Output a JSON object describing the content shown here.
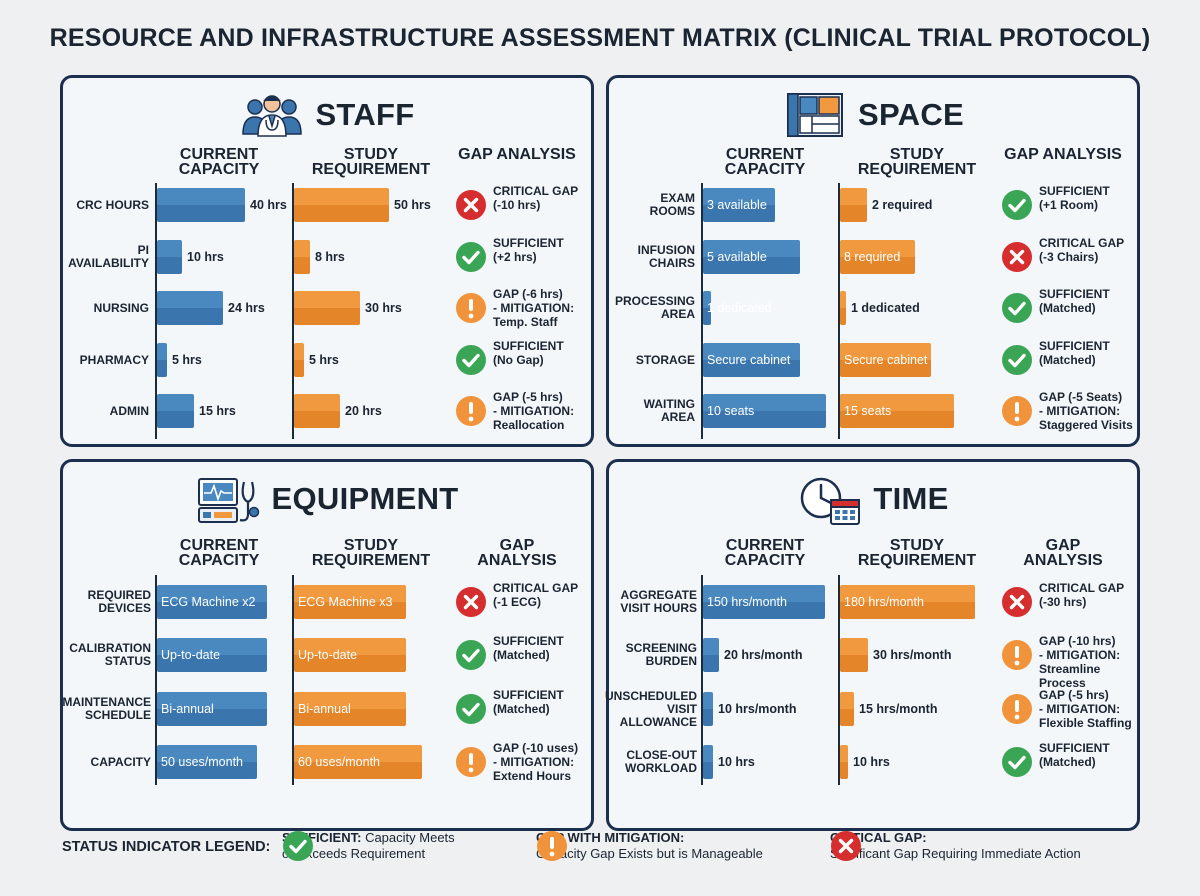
{
  "title": "RESOURCE AND INFRASTRUCTURE ASSESSMENT MATRIX (CLINICAL TRIAL PROTOCOL)",
  "colors": {
    "blue": "#3a76ad",
    "orange": "#e38528",
    "green": "#3aa655",
    "red": "#d62e2e",
    "amber": "#f0933a",
    "border": "#1c2f4f"
  },
  "panels": [
    {
      "title": "STAFF",
      "icon": "staff-icon",
      "headers": [
        "CURRENT\nCAPACITY",
        "STUDY\nREQUIREMENT",
        "GAP ANALYSIS"
      ],
      "rows": [
        {
          "label": "CRC HOURS",
          "current": "40 hrs",
          "cur_val": 40,
          "required": "50 hrs",
          "req_val": 50,
          "status": "critical",
          "gap": "CRITICAL GAP\n(-10 hrs)"
        },
        {
          "label": "PI\nAVAILABILITY",
          "current": "10 hrs",
          "cur_val": 10,
          "required": "8 hrs",
          "req_val": 8,
          "status": "sufficient",
          "gap": "SUFFICIENT\n(+2 hrs)"
        },
        {
          "label": "NURSING",
          "current": "24 hrs",
          "cur_val": 24,
          "required": "30 hrs",
          "req_val": 30,
          "status": "mitigation",
          "gap": "GAP (-6 hrs)\n- MITIGATION:\nTemp. Staff"
        },
        {
          "label": "PHARMACY",
          "current": "5 hrs",
          "cur_val": 5,
          "required": "5 hrs",
          "req_val": 5,
          "status": "sufficient",
          "gap": "SUFFICIENT\n(No Gap)"
        },
        {
          "label": "ADMIN",
          "current": "15 hrs",
          "cur_val": 15,
          "required": "20 hrs",
          "req_val": 20,
          "status": "mitigation",
          "gap": "GAP (-5 hrs)\n- MITIGATION:\nReallocation"
        }
      ]
    },
    {
      "title": "SPACE",
      "icon": "floorplan-icon",
      "headers": [
        "CURRENT\nCAPACITY",
        "STUDY\nREQUIREMENT",
        "GAP ANALYSIS"
      ],
      "rows": [
        {
          "label": "EXAM\nROOMS",
          "current": "3 available",
          "cur_val": 3,
          "required": "2 required",
          "req_val": 2,
          "status": "sufficient",
          "gap": "SUFFICIENT\n(+1 Room)"
        },
        {
          "label": "INFUSION\nCHAIRS",
          "current": "5 available",
          "cur_val": 5,
          "required": "8 required",
          "req_val": 8,
          "status": "critical",
          "gap": "CRITICAL GAP\n(-3 Chairs)"
        },
        {
          "label": "PROCESSING\nAREA",
          "current": "1 dedicated",
          "cur_val": 1,
          "required": "1 dedicated",
          "req_val": 1,
          "status": "sufficient",
          "gap": "SUFFICIENT\n(Matched)"
        },
        {
          "label": "STORAGE",
          "current": "Secure cabinet",
          "cur_val": 1,
          "required": "Secure cabinet",
          "req_val": 1,
          "status": "sufficient",
          "gap": "SUFFICIENT\n(Matched)"
        },
        {
          "label": "WAITING\nAREA",
          "current": "10 seats",
          "cur_val": 10,
          "required": "15 seats",
          "req_val": 15,
          "status": "mitigation",
          "gap": "GAP (-5 Seats)\n- MITIGATION:\nStaggered Visits"
        }
      ]
    },
    {
      "title": "EQUIPMENT",
      "icon": "monitor-stethoscope-icon",
      "headers": [
        "CURRENT\nCAPACITY",
        "STUDY\nREQUIREMENT",
        "GAP\nANALYSIS"
      ],
      "rows": [
        {
          "label": "REQUIRED\nDEVICES",
          "current": "ECG Machine x2",
          "cur_val": 2,
          "required": "ECG Machine x3",
          "req_val": 3,
          "status": "critical",
          "gap": "CRITICAL GAP\n(-1 ECG)"
        },
        {
          "label": "CALIBRATION\nSTATUS",
          "current": "Up-to-date",
          "cur_val": 1,
          "required": "Up-to-date",
          "req_val": 1,
          "status": "sufficient",
          "gap": "SUFFICIENT\n(Matched)"
        },
        {
          "label": "MAINTENANCE\nSCHEDULE",
          "current": "Bi-annual",
          "cur_val": 1,
          "required": "Bi-annual",
          "req_val": 1,
          "status": "sufficient",
          "gap": "SUFFICIENT\n(Matched)"
        },
        {
          "label": "CAPACITY",
          "current": "50 uses/month",
          "cur_val": 50,
          "required": "60 uses/month",
          "req_val": 60,
          "status": "mitigation",
          "gap": "GAP (-10 uses)\n- MITIGATION:\nExtend Hours"
        }
      ]
    },
    {
      "title": "TIME",
      "icon": "clock-calendar-icon",
      "headers": [
        "CURRENT\nCAPACITY",
        "STUDY\nREQUIREMENT",
        "GAP\nANALYSIS"
      ],
      "rows": [
        {
          "label": "AGGREGATE\nVISIT HOURS",
          "current": "150 hrs/month",
          "cur_val": 150,
          "required": "180 hrs/month",
          "req_val": 180,
          "status": "critical",
          "gap": "CRITICAL GAP\n(-30 hrs)"
        },
        {
          "label": "SCREENING\nBURDEN",
          "current": "20 hrs/month",
          "cur_val": 20,
          "required": "30 hrs/month",
          "req_val": 30,
          "status": "mitigation",
          "gap": "GAP (-10 hrs)\n- MITIGATION:\nStreamline Process"
        },
        {
          "label": "UNSCHEDULED\nVISIT\nALLOWANCE",
          "current": "10 hrs/month",
          "cur_val": 10,
          "required": "15 hrs/month",
          "req_val": 15,
          "status": "mitigation",
          "gap": "GAP (-5 hrs)\n- MITIGATION:\nFlexible Staffing"
        },
        {
          "label": "CLOSE-OUT\nWORKLOAD",
          "current": "10 hrs",
          "cur_val": 10,
          "required": "10 hrs",
          "req_val": 10,
          "status": "sufficient",
          "gap": "SUFFICIENT\n(Matched)"
        }
      ]
    }
  ],
  "legend": {
    "label": "STATUS INDICATOR LEGEND:",
    "items": [
      {
        "status": "sufficient",
        "title": "SUFFICIENT:",
        "desc1": " Capacity Meets",
        "desc2": "or Exceeds Requirement"
      },
      {
        "status": "mitigation",
        "title": "GAP WITH MITIGATION:",
        "desc1": "",
        "desc2": "Capacity Gap Exists but is Manageable"
      },
      {
        "status": "critical",
        "title": "CRITICAL GAP:",
        "desc1": "",
        "desc2": "Significant Gap Requiring Immediate Action"
      }
    ]
  }
}
